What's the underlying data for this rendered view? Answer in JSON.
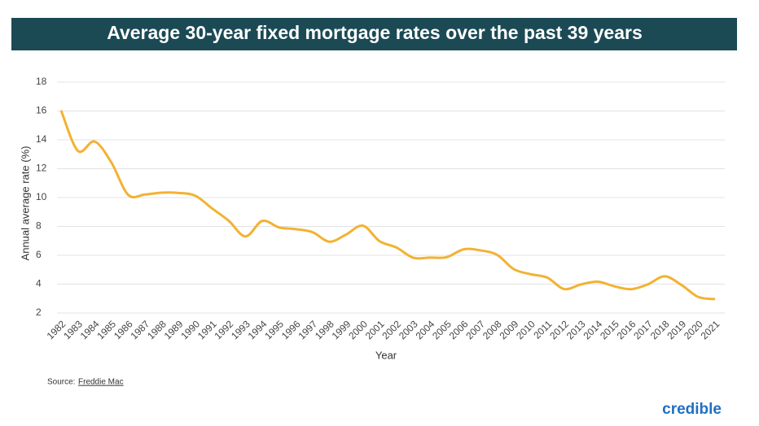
{
  "chart_data": {
    "type": "line",
    "title": "Average 30-year fixed mortgage rates over the past 39 years",
    "x_label": "Year",
    "y_label": "Annual average rate (%)",
    "categories": [
      "1982",
      "1983",
      "1984",
      "1985",
      "1986",
      "1987",
      "1988",
      "1989",
      "1990",
      "1991",
      "1992",
      "1993",
      "1994",
      "1995",
      "1996",
      "1997",
      "1998",
      "1999",
      "2000",
      "2001",
      "2002",
      "2003",
      "2004",
      "2005",
      "2006",
      "2007",
      "2008",
      "2009",
      "2010",
      "2011",
      "2012",
      "2013",
      "2014",
      "2015",
      "2016",
      "2017",
      "2018",
      "2019",
      "2020",
      "2021"
    ],
    "values": [
      16.04,
      13.24,
      13.88,
      12.43,
      10.19,
      10.21,
      10.34,
      10.32,
      10.13,
      9.25,
      8.39,
      7.31,
      8.38,
      7.93,
      7.81,
      7.6,
      6.94,
      7.44,
      8.05,
      6.97,
      6.54,
      5.83,
      5.84,
      5.87,
      6.41,
      6.34,
      6.03,
      5.04,
      4.69,
      4.45,
      3.66,
      3.98,
      4.17,
      3.85,
      3.65,
      3.99,
      4.54,
      3.94,
      3.11,
      2.96
    ],
    "color": "#f2b233",
    "ylim": [
      2,
      18
    ],
    "yticks": [
      2,
      4,
      6,
      8,
      10,
      12,
      14,
      16,
      18
    ],
    "grid": true,
    "source_label": "Source:",
    "source_name": "Freddie Mac",
    "brand": "credible"
  }
}
